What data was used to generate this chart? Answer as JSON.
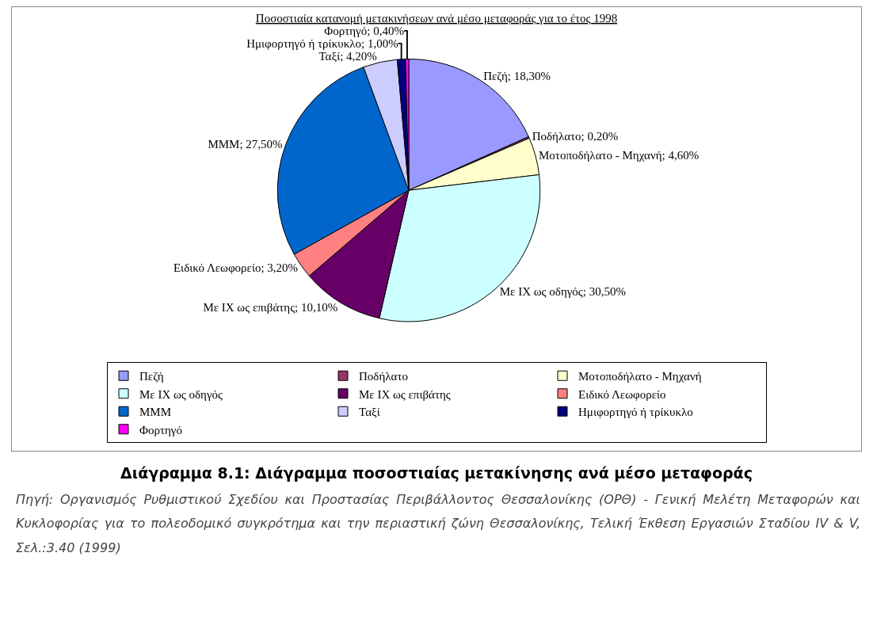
{
  "chart_data": {
    "type": "pie",
    "title": "Ποσοστιαία κατανομή μετακινήσεων ανά μέσο μεταφοράς για το έτος 1998",
    "categories": [
      "Πεζή",
      "Ποδήλατο",
      "Μοτοποδήλατο - Μηχανή",
      "Με ΙΧ ως οδηγός",
      "Με ΙΧ ως επιβάτης",
      "Ειδικό Λεωφορείο",
      "ΜΜΜ",
      "Ταξί",
      "Ημιφορτηγό ή τρίκυκλο",
      "Φορτηγό"
    ],
    "values": [
      18.3,
      0.2,
      4.6,
      30.5,
      10.1,
      3.2,
      27.5,
      4.2,
      1.0,
      0.4
    ],
    "value_labels": [
      "Πεζή; 18,30%",
      "Ποδήλατο; 0,20%",
      "Μοτοποδήλατο - Μηχανή; 4,60%",
      "Με ΙΧ ως οδηγός; 30,50%",
      "Με ΙΧ ως επιβάτης; 10,10%",
      "Ειδικό Λεωφορείο; 3,20%",
      "ΜΜΜ; 27,50%",
      "Ταξί; 4,20%",
      "Ημιφορτηγό ή τρίκυκλο; 1,00%",
      "Φορτηγό; 0,40%"
    ],
    "colors": [
      "#9999ff",
      "#993366",
      "#ffffcc",
      "#ccffff",
      "#660066",
      "#ff8080",
      "#0066cc",
      "#ccccff",
      "#000080",
      "#ff00ff"
    ],
    "legend": "bottom",
    "annotations": [
      "Διάγραμμα 8.1: Διάγραμμα ποσοστιαίας μετακίνησης ανά μέσο μεταφοράς",
      "Πηγή: Οργανισμός Ρυθμιστικού Σχεδίου και Προστασίας Περιβάλλοντος Θεσσαλονίκης (ΟΡΘ) - Γενική Μελέτη Μεταφορών και Κυκλοφορίας για το πολεοδομικό συγκρότημα και την περιαστική ζώνη Θεσσαλονίκης, Τελική Έκθεση Εργασιών Σταδίου IV & V, Σελ.:3.40 (1999)"
    ]
  }
}
